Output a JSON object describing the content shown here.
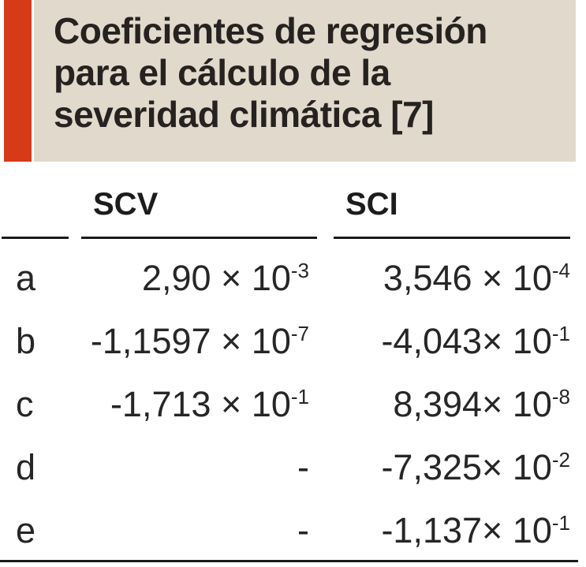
{
  "title": {
    "text": "Coeficientes de regresión\npara el cálculo de la\nseveridad climática [7]"
  },
  "colors": {
    "accent_bar": "#d73a18",
    "title_bg": "#e1d9cb",
    "rule": "#1a1a1a",
    "title_text": "#262220",
    "body_text": "#262626"
  },
  "table": {
    "columns": [
      {
        "label": "SCV"
      },
      {
        "label": "SCI"
      }
    ],
    "rows": [
      {
        "label": "a",
        "scv": {
          "base": "2,90 × 10",
          "exp": "-3"
        },
        "sci": {
          "base": "3,546 × 10",
          "exp": "-4"
        }
      },
      {
        "label": "b",
        "scv": {
          "base": "-1,1597 × 10",
          "exp": "-7"
        },
        "sci": {
          "base": "-4,043× 10",
          "exp": "-1"
        }
      },
      {
        "label": "c",
        "scv": {
          "base": "-1,713 × 10",
          "exp": "-1"
        },
        "sci": {
          "base": "8,394× 10",
          "exp": "-8"
        }
      },
      {
        "label": "d",
        "scv": {
          "base": "-",
          "exp": ""
        },
        "sci": {
          "base": "-7,325× 10",
          "exp": "-2"
        }
      },
      {
        "label": "e",
        "scv": {
          "base": "-",
          "exp": ""
        },
        "sci": {
          "base": "-1,137× 10",
          "exp": "-1"
        }
      }
    ]
  }
}
